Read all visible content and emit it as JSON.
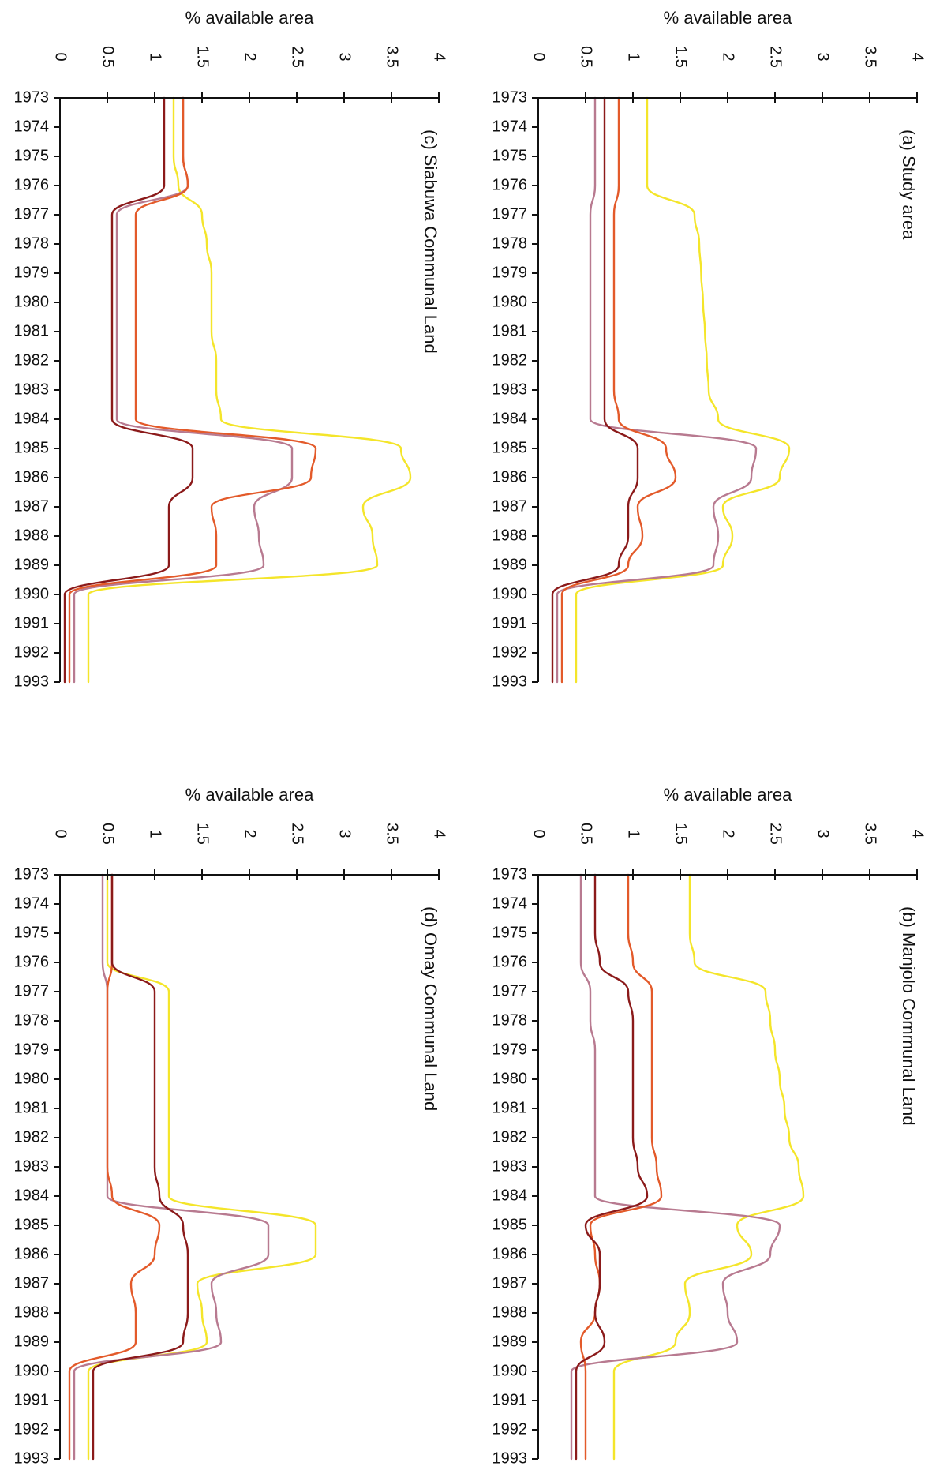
{
  "chart_data": [
    {
      "type": "line",
      "title": "(a) Study area",
      "ylabel": "% available area",
      "ylim": [
        0,
        4
      ],
      "yticks": [
        "0",
        "0.5",
        "1",
        "1.5",
        "2",
        "2.5",
        "3",
        "3.5",
        "4"
      ],
      "x": [
        "1973",
        "1974",
        "1975",
        "1976",
        "1977",
        "1978",
        "1979",
        "1980",
        "1981",
        "1982",
        "1983",
        "1984",
        "1985",
        "1986",
        "1987",
        "1988",
        "1989",
        "1990",
        "1991",
        "1992",
        "1993"
      ],
      "orientation": "rotated-90",
      "series": [
        {
          "color": "#f4e52a",
          "values": [
            1.15,
            1.15,
            1.15,
            1.15,
            1.65,
            1.7,
            1.72,
            1.74,
            1.76,
            1.78,
            1.8,
            1.9,
            2.65,
            2.55,
            1.95,
            2.05,
            1.95,
            0.4,
            0.4,
            0.4,
            0.4
          ]
        },
        {
          "color": "#b87a90",
          "values": [
            0.6,
            0.6,
            0.6,
            0.6,
            0.55,
            0.55,
            0.55,
            0.55,
            0.55,
            0.55,
            0.55,
            0.55,
            2.3,
            2.25,
            1.85,
            1.9,
            1.85,
            0.2,
            0.2,
            0.2,
            0.2
          ]
        },
        {
          "color": "#e35a2a",
          "values": [
            0.85,
            0.85,
            0.85,
            0.85,
            0.8,
            0.8,
            0.8,
            0.8,
            0.8,
            0.8,
            0.8,
            0.85,
            1.35,
            1.45,
            1.05,
            1.1,
            0.95,
            0.25,
            0.25,
            0.25,
            0.25
          ]
        },
        {
          "color": "#8b1a1a",
          "values": [
            0.7,
            0.7,
            0.7,
            0.7,
            0.7,
            0.7,
            0.7,
            0.7,
            0.7,
            0.7,
            0.7,
            0.7,
            1.05,
            1.05,
            0.95,
            0.95,
            0.85,
            0.15,
            0.15,
            0.15,
            0.15
          ]
        }
      ]
    },
    {
      "type": "line",
      "title": "(b) Manjolo Communal Land",
      "ylabel": "% available area",
      "ylim": [
        0,
        4
      ],
      "yticks": [
        "0",
        "0.5",
        "1",
        "1.5",
        "2",
        "2.5",
        "3",
        "3.5",
        "4"
      ],
      "x": [
        "1973",
        "1974",
        "1975",
        "1976",
        "1977",
        "1978",
        "1979",
        "1980",
        "1981",
        "1982",
        "1983",
        "1984",
        "1985",
        "1986",
        "1987",
        "1988",
        "1989",
        "1990",
        "1991",
        "1992",
        "1993"
      ],
      "orientation": "rotated-90",
      "series": [
        {
          "color": "#f4e52a",
          "values": [
            1.6,
            1.6,
            1.6,
            1.65,
            2.4,
            2.45,
            2.5,
            2.55,
            2.6,
            2.65,
            2.75,
            2.8,
            2.1,
            2.25,
            1.55,
            1.6,
            1.45,
            0.8,
            0.8,
            0.8,
            0.8
          ]
        },
        {
          "color": "#b87a90",
          "values": [
            0.45,
            0.45,
            0.45,
            0.45,
            0.55,
            0.55,
            0.6,
            0.6,
            0.6,
            0.6,
            0.6,
            0.6,
            2.55,
            2.45,
            1.95,
            2.0,
            2.1,
            0.35,
            0.35,
            0.35,
            0.35
          ]
        },
        {
          "color": "#e35a2a",
          "values": [
            0.95,
            0.95,
            0.95,
            1.0,
            1.2,
            1.2,
            1.2,
            1.2,
            1.2,
            1.2,
            1.25,
            1.3,
            0.55,
            0.6,
            0.65,
            0.6,
            0.45,
            0.5,
            0.5,
            0.5,
            0.5
          ]
        },
        {
          "color": "#8b1a1a",
          "values": [
            0.6,
            0.6,
            0.6,
            0.65,
            0.95,
            1.0,
            1.0,
            1.0,
            1.0,
            1.0,
            1.05,
            1.15,
            0.5,
            0.65,
            0.65,
            0.6,
            0.7,
            0.4,
            0.4,
            0.4,
            0.4
          ]
        }
      ]
    },
    {
      "type": "line",
      "title": "(c) Siabuwa Communal Land",
      "ylabel": "% available area",
      "ylim": [
        0,
        4
      ],
      "yticks": [
        "0",
        "0.5",
        "1",
        "1.5",
        "2",
        "2.5",
        "3",
        "3.5",
        "4"
      ],
      "x": [
        "1973",
        "1974",
        "1975",
        "1976",
        "1977",
        "1978",
        "1979",
        "1980",
        "1981",
        "1982",
        "1983",
        "1984",
        "1985",
        "1986",
        "1987",
        "1988",
        "1989",
        "1990",
        "1991",
        "1992",
        "1993"
      ],
      "orientation": "rotated-90",
      "series": [
        {
          "color": "#f4e52a",
          "values": [
            1.2,
            1.2,
            1.2,
            1.25,
            1.5,
            1.55,
            1.6,
            1.6,
            1.6,
            1.65,
            1.65,
            1.7,
            3.6,
            3.7,
            3.2,
            3.3,
            3.35,
            0.3,
            0.3,
            0.3,
            0.3
          ]
        },
        {
          "color": "#b87a90",
          "values": [
            1.3,
            1.3,
            1.3,
            1.35,
            0.6,
            0.6,
            0.6,
            0.6,
            0.6,
            0.6,
            0.6,
            0.6,
            2.45,
            2.45,
            2.05,
            2.1,
            2.15,
            0.15,
            0.15,
            0.15,
            0.15
          ]
        },
        {
          "color": "#e35a2a",
          "values": [
            1.3,
            1.3,
            1.3,
            1.35,
            0.8,
            0.8,
            0.8,
            0.8,
            0.8,
            0.8,
            0.8,
            0.8,
            2.7,
            2.65,
            1.6,
            1.65,
            1.65,
            0.1,
            0.1,
            0.1,
            0.1
          ]
        },
        {
          "color": "#8b1a1a",
          "values": [
            1.1,
            1.1,
            1.1,
            1.1,
            0.55,
            0.55,
            0.55,
            0.55,
            0.55,
            0.55,
            0.55,
            0.55,
            1.4,
            1.4,
            1.15,
            1.15,
            1.15,
            0.05,
            0.05,
            0.05,
            0.05
          ]
        }
      ]
    },
    {
      "type": "line",
      "title": "(d) Omay Communal Land",
      "ylabel": "% available area",
      "ylim": [
        0,
        4
      ],
      "yticks": [
        "0",
        "0.5",
        "1",
        "1.5",
        "2",
        "2.5",
        "3",
        "3.5",
        "4"
      ],
      "x": [
        "1973",
        "1974",
        "1975",
        "1976",
        "1977",
        "1978",
        "1979",
        "1980",
        "1981",
        "1982",
        "1983",
        "1984",
        "1985",
        "1986",
        "1987",
        "1988",
        "1989",
        "1990",
        "1991",
        "1992",
        "1993"
      ],
      "orientation": "rotated-90",
      "series": [
        {
          "color": "#f4e52a",
          "values": [
            0.5,
            0.5,
            0.5,
            0.5,
            1.15,
            1.15,
            1.15,
            1.15,
            1.15,
            1.15,
            1.15,
            1.15,
            2.7,
            2.7,
            1.45,
            1.5,
            1.55,
            0.3,
            0.3,
            0.3,
            0.3
          ]
        },
        {
          "color": "#b87a90",
          "values": [
            0.45,
            0.45,
            0.45,
            0.45,
            0.5,
            0.5,
            0.5,
            0.5,
            0.5,
            0.5,
            0.5,
            0.5,
            2.2,
            2.2,
            1.6,
            1.65,
            1.7,
            0.15,
            0.15,
            0.15,
            0.15
          ]
        },
        {
          "color": "#e35a2a",
          "values": [
            0.55,
            0.55,
            0.55,
            0.55,
            0.5,
            0.5,
            0.5,
            0.5,
            0.5,
            0.5,
            0.5,
            0.55,
            1.05,
            1.0,
            0.75,
            0.8,
            0.8,
            0.1,
            0.1,
            0.1,
            0.1
          ]
        },
        {
          "color": "#8b1a1a",
          "values": [
            0.55,
            0.55,
            0.55,
            0.55,
            1.0,
            1.0,
            1.0,
            1.0,
            1.0,
            1.0,
            1.0,
            1.05,
            1.3,
            1.35,
            1.35,
            1.35,
            1.3,
            0.35,
            0.35,
            0.35,
            0.35
          ]
        }
      ]
    }
  ]
}
